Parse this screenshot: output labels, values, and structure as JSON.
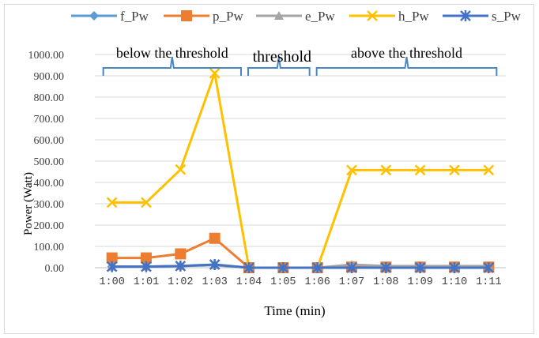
{
  "chart_data": {
    "type": "line",
    "xlabel": "Time (min)",
    "ylabel": "Power (Watt)",
    "ylim": [
      0,
      1000
    ],
    "y_ticks": [
      "0.00",
      "100.00",
      "200.00",
      "300.00",
      "400.00",
      "500.00",
      "600.00",
      "700.00",
      "800.00",
      "900.00",
      "1000.00"
    ],
    "categories": [
      "1:00",
      "1:01",
      "1:02",
      "1:03",
      "1:04",
      "1:05",
      "1:06",
      "1:07",
      "1:08",
      "1:09",
      "1:10",
      "1:11"
    ],
    "grid": "horizontal",
    "legend_position": "top",
    "series": [
      {
        "name": "f_Pw",
        "color": "#5b9bd5",
        "marker": "diamond",
        "values": [
          5,
          5,
          8,
          12,
          0,
          0,
          0,
          5,
          3,
          3,
          3,
          3
        ]
      },
      {
        "name": "p_Pw",
        "color": "#ed7d31",
        "marker": "square",
        "values": [
          46,
          46,
          65,
          138,
          0,
          0,
          0,
          3,
          3,
          3,
          3,
          3
        ]
      },
      {
        "name": "e_Pw",
        "color": "#a5a5a5",
        "marker": "triangle",
        "values": [
          5,
          5,
          8,
          12,
          0,
          0,
          0,
          15,
          8,
          8,
          8,
          8
        ]
      },
      {
        "name": "h_Pw",
        "color": "#ffc000",
        "marker": "x",
        "values": [
          306,
          306,
          460,
          912,
          0,
          0,
          0,
          458,
          458,
          458,
          458,
          458
        ]
      },
      {
        "name": "s_Pw",
        "color": "#4472c4",
        "marker": "star",
        "values": [
          5,
          5,
          8,
          15,
          0,
          0,
          0,
          0,
          0,
          0,
          0,
          0
        ]
      }
    ],
    "annotations": [
      {
        "text": "below the threshold",
        "from": 0,
        "to": 4
      },
      {
        "text": "threshold",
        "from": 4,
        "to": 6
      },
      {
        "text": "above the threshold",
        "from": 6,
        "to": 11
      }
    ]
  }
}
